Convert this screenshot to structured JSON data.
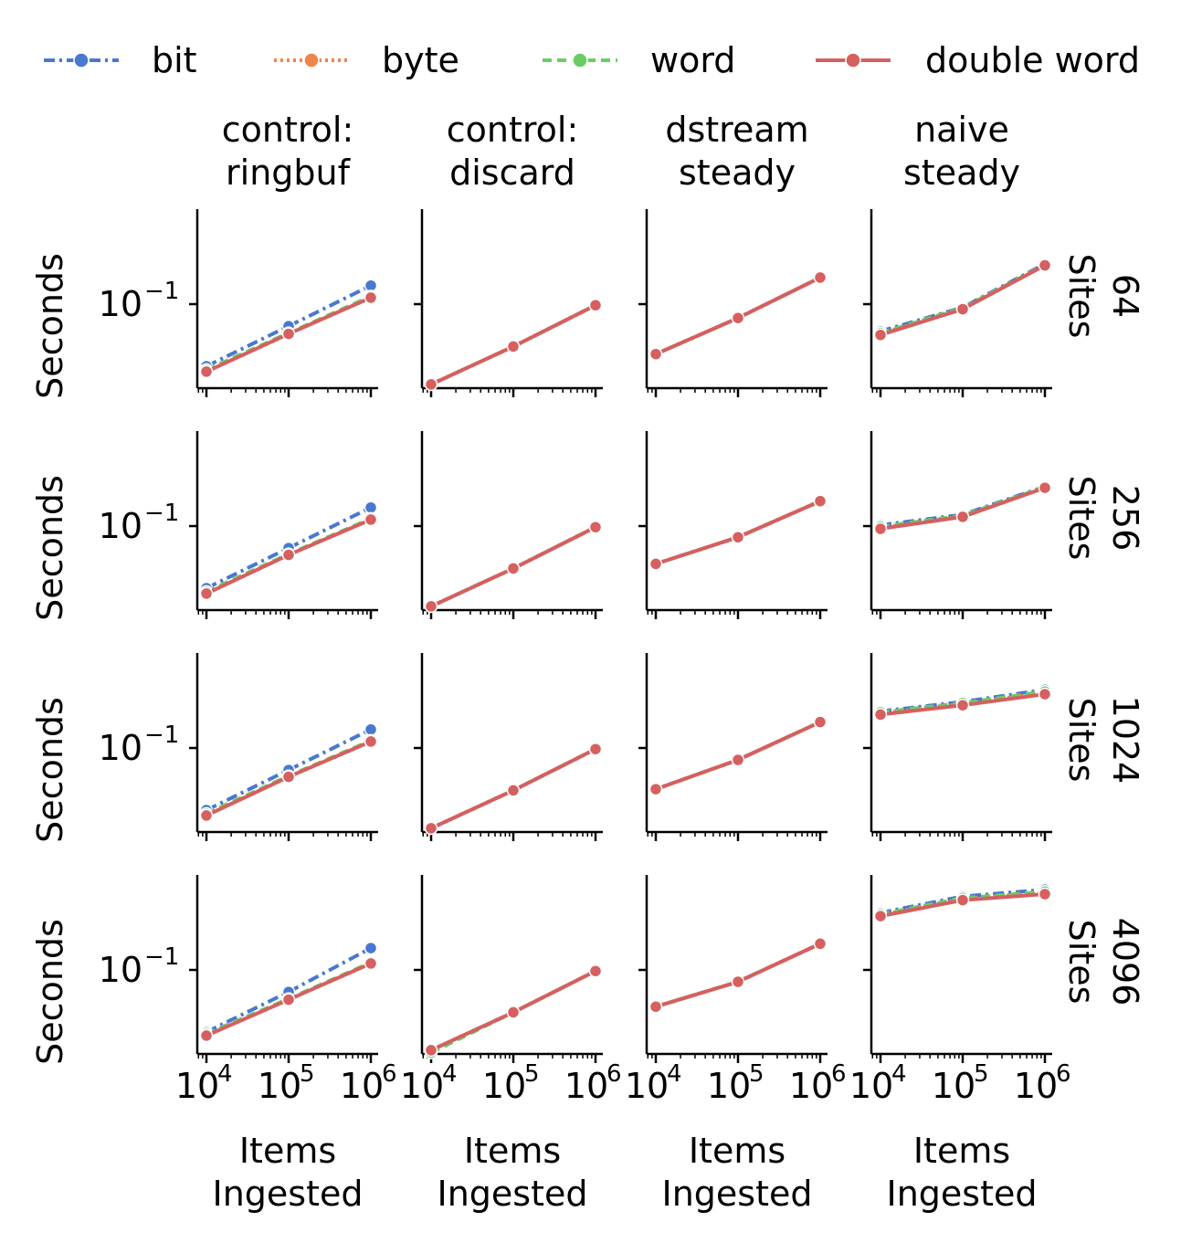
{
  "legend": {
    "items": [
      {
        "label": "bit",
        "color": "#4878d0",
        "dash": "dashdot"
      },
      {
        "label": "byte",
        "color": "#ee854a",
        "dash": "dotted"
      },
      {
        "label": "word",
        "color": "#6acc64",
        "dash": "dashed"
      },
      {
        "label": "double word",
        "color": "#d65f5f",
        "dash": "solid"
      }
    ]
  },
  "chart_data": {
    "type": "line",
    "x_scale": "log",
    "y_scale": "log",
    "xlabel": "Items\nIngested",
    "ylabel": "Seconds",
    "x": [
      10000,
      100000,
      1000000
    ],
    "x_ticks": [
      "10^4",
      "10^5",
      "10^6"
    ],
    "y_ticks": [
      "10^−1"
    ],
    "columns": [
      "control:\nringbuf",
      "control:\ndiscard",
      "dstream\nsteady",
      "naive\nsteady"
    ],
    "rows": [
      "64\nSites",
      "256\nSites",
      "1024\nSites",
      "4096\nSites"
    ],
    "series_names": [
      "bit",
      "byte",
      "word",
      "double word"
    ],
    "panels": [
      [
        {
          "bit": [
            0.031,
            0.066,
            0.142
          ],
          "byte": [
            0.028,
            0.057,
            0.113
          ],
          "word": [
            0.029,
            0.058,
            0.116
          ],
          "double word": [
            0.028,
            0.057,
            0.113
          ]
        },
        {
          "bit": [
            0.022,
            0.045,
            0.098
          ],
          "byte": [
            0.022,
            0.045,
            0.098
          ],
          "word": [
            0.022,
            0.045,
            0.098
          ],
          "double word": [
            0.022,
            0.045,
            0.098
          ]
        },
        {
          "bit": [
            0.039,
            0.077,
            0.165
          ],
          "byte": [
            0.039,
            0.077,
            0.165
          ],
          "word": [
            0.039,
            0.077,
            0.165
          ],
          "double word": [
            0.039,
            0.077,
            0.165
          ]
        },
        {
          "bit": [
            0.06,
            0.094,
            0.214
          ],
          "byte": [
            0.057,
            0.092,
            0.208
          ],
          "word": [
            0.058,
            0.093,
            0.21
          ],
          "double word": [
            0.056,
            0.091,
            0.208
          ]
        }
      ],
      [
        {
          "bit": [
            0.031,
            0.066,
            0.142
          ],
          "byte": [
            0.028,
            0.058,
            0.113
          ],
          "word": [
            0.029,
            0.059,
            0.115
          ],
          "double word": [
            0.028,
            0.058,
            0.113
          ]
        },
        {
          "bit": [
            0.022,
            0.045,
            0.098
          ],
          "byte": [
            0.022,
            0.045,
            0.098
          ],
          "word": [
            0.022,
            0.045,
            0.098
          ],
          "double word": [
            0.022,
            0.045,
            0.098
          ]
        },
        {
          "bit": [
            0.049,
            0.081,
            0.16
          ],
          "byte": [
            0.049,
            0.081,
            0.16
          ],
          "word": [
            0.049,
            0.081,
            0.16
          ],
          "double word": [
            0.049,
            0.081,
            0.16
          ]
        },
        {
          "bit": [
            0.102,
            0.124,
            0.211
          ],
          "byte": [
            0.097,
            0.12,
            0.207
          ],
          "word": [
            0.099,
            0.122,
            0.209
          ],
          "double word": [
            0.095,
            0.119,
            0.206
          ]
        }
      ],
      [
        {
          "bit": [
            0.031,
            0.066,
            0.142
          ],
          "byte": [
            0.028,
            0.058,
            0.113
          ],
          "word": [
            0.029,
            0.059,
            0.115
          ],
          "double word": [
            0.028,
            0.058,
            0.113
          ]
        },
        {
          "bit": [
            0.022,
            0.045,
            0.098
          ],
          "byte": [
            0.022,
            0.045,
            0.098
          ],
          "word": [
            0.022,
            0.045,
            0.098
          ],
          "double word": [
            0.022,
            0.045,
            0.098
          ]
        },
        {
          "bit": [
            0.046,
            0.08,
            0.163
          ],
          "byte": [
            0.046,
            0.08,
            0.163
          ],
          "word": [
            0.046,
            0.08,
            0.163
          ],
          "double word": [
            0.046,
            0.08,
            0.163
          ]
        },
        {
          "bit": [
            0.2,
            0.239,
            0.3
          ],
          "byte": [
            0.193,
            0.23,
            0.285
          ],
          "word": [
            0.196,
            0.234,
            0.29
          ],
          "double word": [
            0.188,
            0.224,
            0.276
          ]
        }
      ],
      [
        {
          "bit": [
            0.031,
            0.066,
            0.151
          ],
          "byte": [
            0.029,
            0.057,
            0.113
          ],
          "word": [
            0.03,
            0.058,
            0.115
          ],
          "double word": [
            0.029,
            0.057,
            0.113
          ]
        },
        {
          "bit": [
            0.022,
            0.045,
            0.098
          ],
          "byte": [
            0.022,
            0.045,
            0.098
          ],
          "word": [
            0.021,
            0.045,
            0.098
          ],
          "double word": [
            0.022,
            0.045,
            0.098
          ]
        },
        {
          "bit": [
            0.05,
            0.08,
            0.164
          ],
          "byte": [
            0.05,
            0.08,
            0.164
          ],
          "word": [
            0.05,
            0.08,
            0.164
          ],
          "double word": [
            0.05,
            0.08,
            0.164
          ]
        },
        {
          "bit": [
            0.294,
            0.4,
            0.455
          ],
          "byte": [
            0.282,
            0.382,
            0.43
          ],
          "word": [
            0.286,
            0.388,
            0.438
          ],
          "double word": [
            0.276,
            0.373,
            0.418
          ]
        }
      ]
    ]
  }
}
